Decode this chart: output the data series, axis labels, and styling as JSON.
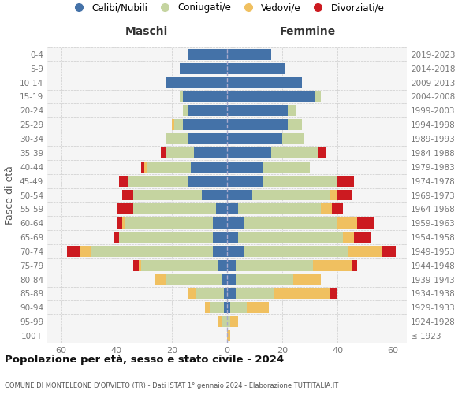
{
  "age_groups": [
    "100+",
    "95-99",
    "90-94",
    "85-89",
    "80-84",
    "75-79",
    "70-74",
    "65-69",
    "60-64",
    "55-59",
    "50-54",
    "45-49",
    "40-44",
    "35-39",
    "30-34",
    "25-29",
    "20-24",
    "15-19",
    "10-14",
    "5-9",
    "0-4"
  ],
  "birth_years": [
    "≤ 1923",
    "1924-1928",
    "1929-1933",
    "1934-1938",
    "1939-1943",
    "1944-1948",
    "1949-1953",
    "1954-1958",
    "1959-1963",
    "1964-1968",
    "1969-1973",
    "1974-1978",
    "1979-1983",
    "1984-1988",
    "1989-1993",
    "1994-1998",
    "1999-2003",
    "2004-2008",
    "2009-2013",
    "2014-2018",
    "2019-2023"
  ],
  "colors": {
    "celibi": "#4472a8",
    "coniugati": "#c5d4a0",
    "vedovi": "#f0c060",
    "divorziati": "#cc1a20"
  },
  "maschi": {
    "celibi": [
      0,
      0,
      1,
      1,
      2,
      3,
      5,
      5,
      5,
      4,
      9,
      14,
      13,
      12,
      14,
      16,
      14,
      16,
      22,
      17,
      14
    ],
    "coniugati": [
      0,
      2,
      5,
      10,
      20,
      28,
      44,
      34,
      32,
      30,
      25,
      22,
      16,
      10,
      8,
      3,
      2,
      1,
      0,
      0,
      0
    ],
    "vedovi": [
      0,
      1,
      2,
      3,
      4,
      1,
      4,
      0,
      1,
      0,
      0,
      0,
      1,
      0,
      0,
      1,
      0,
      0,
      0,
      0,
      0
    ],
    "divorziati": [
      0,
      0,
      0,
      0,
      0,
      2,
      5,
      2,
      2,
      6,
      4,
      3,
      1,
      2,
      0,
      0,
      0,
      0,
      0,
      0,
      0
    ]
  },
  "femmine": {
    "celibi": [
      0,
      0,
      1,
      3,
      3,
      3,
      6,
      4,
      6,
      4,
      9,
      13,
      13,
      16,
      20,
      22,
      22,
      32,
      27,
      21,
      16
    ],
    "coniugati": [
      0,
      1,
      6,
      14,
      21,
      28,
      38,
      38,
      34,
      30,
      28,
      27,
      17,
      17,
      8,
      5,
      3,
      2,
      0,
      0,
      0
    ],
    "vedovi": [
      1,
      3,
      8,
      20,
      10,
      14,
      12,
      4,
      7,
      4,
      3,
      0,
      0,
      0,
      0,
      0,
      0,
      0,
      0,
      0,
      0
    ],
    "divorziati": [
      0,
      0,
      0,
      3,
      0,
      2,
      5,
      6,
      6,
      4,
      5,
      6,
      0,
      3,
      0,
      0,
      0,
      0,
      0,
      0,
      0
    ]
  },
  "title": "Popolazione per età, sesso e stato civile - 2024",
  "subtitle": "COMUNE DI MONTELEONE D'ORVIETO (TR) - Dati ISTAT 1° gennaio 2024 - Elaborazione TUTTITALIA.IT",
  "xlabel_left": "Maschi",
  "xlabel_right": "Femmine",
  "ylabel_left": "Fasce di età",
  "xlim": 65,
  "xticks": [
    -60,
    -40,
    -20,
    0,
    20,
    40,
    60
  ],
  "legend_labels": [
    "Celibi/Nubili",
    "Coniugati/e",
    "Vedovi/e",
    "Divorziati/e"
  ],
  "bg_color": "#ffffff",
  "plot_bg": "#f5f5f5",
  "grid_color": "#cccccc",
  "center_line_color": "#aaaacc",
  "tick_label_color": "#777777",
  "maschi_header_color": "#333333",
  "femmine_header_color": "#333333",
  "ylabel_left_color": "#555555",
  "ylabel_right_color": "#e06000",
  "title_color": "#111111",
  "subtitle_color": "#555555"
}
